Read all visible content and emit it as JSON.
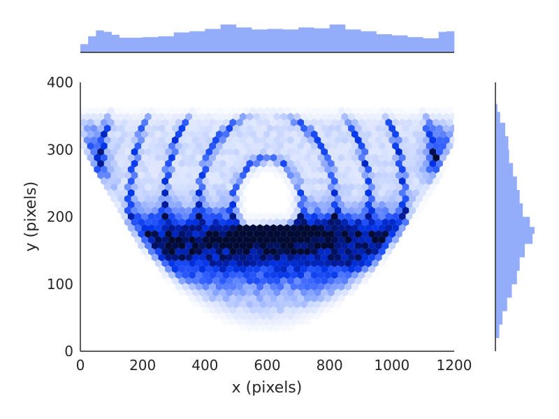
{
  "chart_data": {
    "type": "heatmap",
    "subtype": "hexbin-jointplot",
    "title": "",
    "xlabel": "x (pixels)",
    "ylabel": "y (pixels)",
    "xlim": [
      0,
      1200
    ],
    "ylim": [
      0,
      400
    ],
    "xticks": [
      "0",
      "200",
      "400",
      "600",
      "800",
      "1000",
      "1200"
    ],
    "yticks": [
      "0",
      "100",
      "200",
      "300",
      "400"
    ],
    "grid": false,
    "colormap": [
      "#ffffff",
      "#dbe4ff",
      "#8ca8ff",
      "#2f5dff",
      "#0033e6",
      "#001a99",
      "#000a33"
    ],
    "marginal_color": "#93adfa",
    "axis_color": "#262626",
    "density_features": {
      "x_range": [
        0,
        1200
      ],
      "y_range": [
        25,
        360
      ],
      "dense_band_y": [
        120,
        200
      ],
      "peak_center": [
        640,
        175
      ],
      "empty_region_center": [
        590,
        215
      ],
      "arcs": "concentric semicircular rings opening upward, centered near x=600"
    },
    "marginal_x": {
      "bin_edges": [
        0,
        25,
        50,
        75,
        100,
        125,
        150,
        200,
        250,
        300,
        350,
        400,
        450,
        500,
        550,
        600,
        650,
        700,
        750,
        800,
        850,
        900,
        950,
        1000,
        1050,
        1100,
        1150,
        1175,
        1200
      ],
      "values": [
        0.28,
        0.55,
        0.75,
        0.7,
        0.6,
        0.5,
        0.5,
        0.52,
        0.55,
        0.68,
        0.72,
        0.8,
        0.95,
        0.85,
        0.78,
        0.8,
        0.78,
        0.85,
        0.82,
        0.95,
        0.78,
        0.72,
        0.62,
        0.58,
        0.52,
        0.48,
        0.7,
        0.72
      ]
    },
    "marginal_y": {
      "bin_centers": [
        30,
        50,
        70,
        90,
        110,
        130,
        150,
        170,
        180,
        190,
        210,
        230,
        250,
        270,
        290,
        310,
        330,
        350,
        362
      ],
      "values": [
        0.1,
        0.18,
        0.3,
        0.42,
        0.55,
        0.62,
        0.75,
        0.95,
        1.0,
        0.88,
        0.7,
        0.62,
        0.55,
        0.45,
        0.35,
        0.33,
        0.25,
        0.12,
        0.05
      ]
    }
  }
}
